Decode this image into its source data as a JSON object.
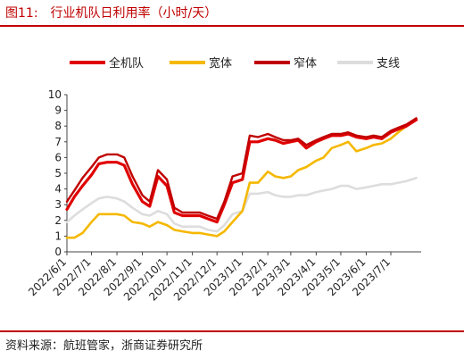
{
  "header": {
    "figure_number": "图11:",
    "title": "行业机队日利用率（小时/天）"
  },
  "footer": {
    "source": "资料来源：航班管家，浙商证券研究所"
  },
  "colors": {
    "brand": "#c00000",
    "series": [
      "#e00000",
      "#f5b800",
      "#c00000",
      "#dddddd"
    ]
  },
  "chart_data": {
    "type": "line",
    "title": "行业机队日利用率（小时/天）",
    "xlabel": "",
    "ylabel": "",
    "ylim": [
      0,
      10
    ],
    "yticks": [
      0,
      1,
      2,
      3,
      4,
      5,
      6,
      7,
      8,
      9,
      10
    ],
    "x_range": [
      "2022-06-01",
      "2023-08-07"
    ],
    "xtick_labels": [
      "2022/6/1",
      "2022/7/1",
      "2022/8/1",
      "2022/9/1",
      "2022/10/1",
      "2022/11/1",
      "2022/12/1",
      "2023/1/1",
      "2023/2/1",
      "2023/3/1",
      "2023/4/1",
      "2023/5/1",
      "2023/6/1",
      "2023/7/1"
    ],
    "xtick_dates": [
      "2022-06-01",
      "2022-07-01",
      "2022-08-01",
      "2022-09-01",
      "2022-10-01",
      "2022-11-01",
      "2022-12-01",
      "2023-01-01",
      "2023-02-01",
      "2023-03-01",
      "2023-04-01",
      "2023-05-01",
      "2023-06-01",
      "2023-07-01"
    ],
    "legend_position": "top",
    "grid": false,
    "series": [
      {
        "name": "全机队",
        "color": "#e00000",
        "x": [
          "2022-06-01",
          "2022-06-10",
          "2022-06-20",
          "2022-07-01",
          "2022-07-10",
          "2022-07-20",
          "2022-08-01",
          "2022-08-10",
          "2022-08-20",
          "2022-09-01",
          "2022-09-10",
          "2022-09-20",
          "2022-10-01",
          "2022-10-10",
          "2022-10-20",
          "2022-11-01",
          "2022-11-10",
          "2022-11-20",
          "2022-12-01",
          "2022-12-10",
          "2022-12-20",
          "2023-01-01",
          "2023-01-10",
          "2023-01-20",
          "2023-02-01",
          "2023-02-10",
          "2023-02-20",
          "2023-03-01",
          "2023-03-10",
          "2023-03-20",
          "2023-04-01",
          "2023-04-10",
          "2023-04-20",
          "2023-05-01",
          "2023-05-10",
          "2023-05-20",
          "2023-06-01",
          "2023-06-10",
          "2023-06-20",
          "2023-07-01",
          "2023-07-10",
          "2023-07-20",
          "2023-08-01"
        ],
        "y": [
          2.7,
          3.5,
          4.2,
          4.9,
          5.6,
          5.7,
          5.7,
          5.5,
          4.3,
          3.2,
          2.9,
          4.8,
          4.2,
          2.5,
          2.3,
          2.3,
          2.3,
          2.1,
          1.9,
          3.0,
          4.4,
          4.6,
          7.0,
          7.0,
          7.2,
          7.1,
          6.9,
          7.0,
          7.1,
          6.6,
          7.0,
          7.2,
          7.4,
          7.4,
          7.5,
          7.3,
          7.2,
          7.3,
          7.2,
          7.6,
          7.8,
          8.0,
          8.4
        ]
      },
      {
        "name": "宽体",
        "color": "#f5b800",
        "x": [
          "2022-06-01",
          "2022-06-10",
          "2022-06-20",
          "2022-07-01",
          "2022-07-10",
          "2022-07-20",
          "2022-08-01",
          "2022-08-10",
          "2022-08-20",
          "2022-09-01",
          "2022-09-10",
          "2022-09-20",
          "2022-10-01",
          "2022-10-10",
          "2022-10-20",
          "2022-11-01",
          "2022-11-10",
          "2022-11-20",
          "2022-12-01",
          "2022-12-10",
          "2022-12-20",
          "2023-01-01",
          "2023-01-10",
          "2023-01-20",
          "2023-02-01",
          "2023-02-10",
          "2023-02-20",
          "2023-03-01",
          "2023-03-10",
          "2023-03-20",
          "2023-04-01",
          "2023-04-10",
          "2023-04-20",
          "2023-05-01",
          "2023-05-10",
          "2023-05-20",
          "2023-06-01",
          "2023-06-10",
          "2023-06-20",
          "2023-07-01",
          "2023-07-10",
          "2023-07-20",
          "2023-08-01"
        ],
        "y": [
          0.9,
          0.9,
          1.2,
          1.9,
          2.4,
          2.4,
          2.4,
          2.3,
          1.9,
          1.8,
          1.6,
          1.9,
          1.7,
          1.4,
          1.3,
          1.2,
          1.2,
          1.1,
          1.0,
          1.3,
          1.9,
          2.6,
          4.4,
          4.4,
          5.1,
          4.8,
          4.7,
          4.8,
          5.2,
          5.4,
          5.8,
          6.0,
          6.6,
          6.8,
          7.0,
          6.4,
          6.6,
          6.8,
          6.9,
          7.2,
          7.6,
          8.0,
          8.4
        ]
      },
      {
        "name": "窄体",
        "color": "#c00000",
        "x": [
          "2022-06-01",
          "2022-06-10",
          "2022-06-20",
          "2022-07-01",
          "2022-07-10",
          "2022-07-20",
          "2022-08-01",
          "2022-08-10",
          "2022-08-20",
          "2022-09-01",
          "2022-09-10",
          "2022-09-20",
          "2022-10-01",
          "2022-10-10",
          "2022-10-20",
          "2022-11-01",
          "2022-11-10",
          "2022-11-20",
          "2022-12-01",
          "2022-12-10",
          "2022-12-20",
          "2023-01-01",
          "2023-01-10",
          "2023-01-20",
          "2023-02-01",
          "2023-02-10",
          "2023-02-20",
          "2023-03-01",
          "2023-03-10",
          "2023-03-20",
          "2023-04-01",
          "2023-04-10",
          "2023-04-20",
          "2023-05-01",
          "2023-05-10",
          "2023-05-20",
          "2023-06-01",
          "2023-06-10",
          "2023-06-20",
          "2023-07-01",
          "2023-07-10",
          "2023-07-20",
          "2023-08-01"
        ],
        "y": [
          3.2,
          3.9,
          4.7,
          5.4,
          6.0,
          6.2,
          6.2,
          6.0,
          4.8,
          3.6,
          3.2,
          5.2,
          4.6,
          2.8,
          2.5,
          2.5,
          2.5,
          2.3,
          2.1,
          3.2,
          4.8,
          5.0,
          7.4,
          7.3,
          7.5,
          7.3,
          7.1,
          7.1,
          7.2,
          6.8,
          7.1,
          7.3,
          7.5,
          7.5,
          7.6,
          7.4,
          7.3,
          7.4,
          7.3,
          7.7,
          7.9,
          8.1,
          8.5
        ]
      },
      {
        "name": "支线",
        "color": "#dddddd",
        "x": [
          "2022-06-01",
          "2022-06-10",
          "2022-06-20",
          "2022-07-01",
          "2022-07-10",
          "2022-07-20",
          "2022-08-01",
          "2022-08-10",
          "2022-08-20",
          "2022-09-01",
          "2022-09-10",
          "2022-09-20",
          "2022-10-01",
          "2022-10-10",
          "2022-10-20",
          "2022-11-01",
          "2022-11-10",
          "2022-11-20",
          "2022-12-01",
          "2022-12-10",
          "2022-12-20",
          "2023-01-01",
          "2023-01-10",
          "2023-01-20",
          "2023-02-01",
          "2023-02-10",
          "2023-02-20",
          "2023-03-01",
          "2023-03-10",
          "2023-03-20",
          "2023-04-01",
          "2023-04-10",
          "2023-04-20",
          "2023-05-01",
          "2023-05-10",
          "2023-05-20",
          "2023-06-01",
          "2023-06-10",
          "2023-06-20",
          "2023-07-01",
          "2023-07-10",
          "2023-07-20",
          "2023-08-01"
        ],
        "y": [
          1.9,
          2.3,
          2.7,
          3.1,
          3.4,
          3.5,
          3.4,
          3.2,
          2.8,
          2.4,
          2.3,
          2.6,
          2.4,
          1.8,
          1.6,
          1.6,
          1.6,
          1.4,
          1.3,
          1.7,
          2.4,
          2.6,
          3.7,
          3.7,
          3.8,
          3.6,
          3.5,
          3.5,
          3.6,
          3.6,
          3.8,
          3.9,
          4.0,
          4.2,
          4.2,
          4.0,
          4.1,
          4.2,
          4.3,
          4.3,
          4.4,
          4.5,
          4.7
        ]
      }
    ]
  }
}
